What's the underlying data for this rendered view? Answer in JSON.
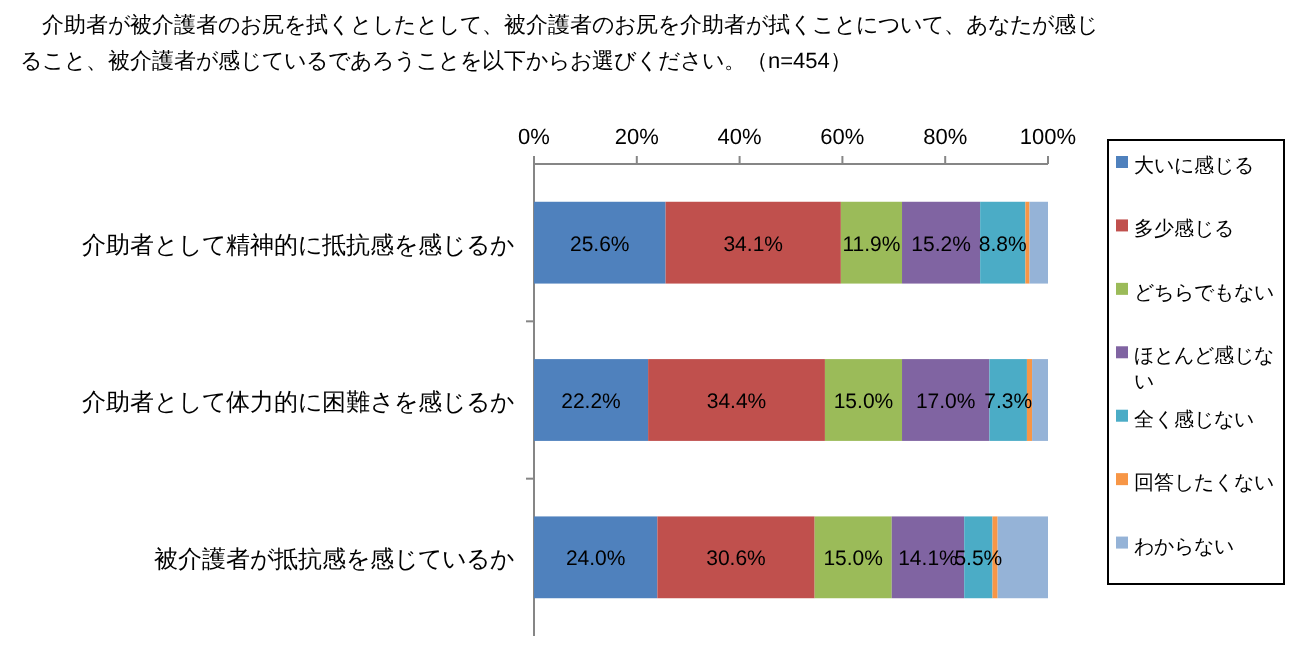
{
  "chart_data": {
    "type": "bar",
    "orientation": "horizontal",
    "stacked": true,
    "title": "　介助者が被介護者のお尻を拭くとしたとして、被介護者のお尻を介助者が拭くことについて、あなたが感じること、被介護者が感じているであろうことを以下からお選びください。（n=454）",
    "categories": [
      "介助者として精神的に抵抗感を感じるか",
      "介助者として体力的に困難さを感じるか",
      "被介護者が抵抗感を感じているか"
    ],
    "series": [
      {
        "name": "大いに感じる",
        "color": "#4f81bd",
        "values": [
          25.6,
          22.2,
          24.0
        ],
        "value_labels": [
          "25.6%",
          "22.2%",
          "24.0%"
        ]
      },
      {
        "name": "多少感じる",
        "color": "#c0504d",
        "values": [
          34.1,
          34.4,
          30.6
        ],
        "value_labels": [
          "34.1%",
          "34.4%",
          "30.6%"
        ]
      },
      {
        "name": "どちらでもない",
        "color": "#9bbb59",
        "values": [
          11.9,
          15.0,
          15.0
        ],
        "value_labels": [
          "11.9%",
          "15.0%",
          "15.0%"
        ]
      },
      {
        "name": "ほとんど感じない",
        "color": "#8064a2",
        "values": [
          15.2,
          17.0,
          14.1
        ],
        "value_labels": [
          "15.2%",
          "17.0%",
          "14.1%"
        ]
      },
      {
        "name": "全く感じない",
        "color": "#4bacc6",
        "values": [
          8.8,
          7.3,
          5.5
        ],
        "value_labels": [
          "8.8%",
          "7.3%",
          "5.5%"
        ]
      },
      {
        "name": "回答したくない",
        "color": "#f79646",
        "values": [
          0.8,
          1.0,
          1.0
        ],
        "value_labels": [
          null,
          null,
          null
        ]
      },
      {
        "name": "わからない",
        "color": "#95b3d7",
        "values": [
          3.6,
          3.1,
          9.8
        ],
        "value_labels": [
          null,
          null,
          null
        ]
      }
    ],
    "xlim": [
      0,
      100
    ],
    "xticks": [
      {
        "value": 0,
        "label": "0%"
      },
      {
        "value": 20,
        "label": "20%"
      },
      {
        "value": 40,
        "label": "40%"
      },
      {
        "value": 60,
        "label": "60%"
      },
      {
        "value": 80,
        "label": "80%"
      },
      {
        "value": 100,
        "label": "100%"
      }
    ],
    "legend": "right"
  }
}
